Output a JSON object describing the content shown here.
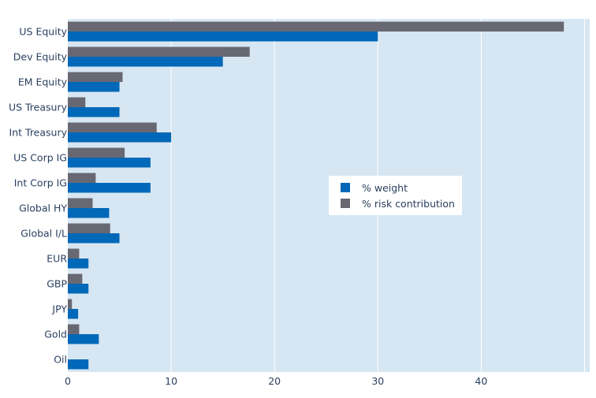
{
  "chart_data": {
    "type": "bar",
    "orientation": "horizontal",
    "categories": [
      "US Equity",
      "Dev Equity",
      "EM Equity",
      "US Treasury",
      "Int Treasury",
      "US Corp IG",
      "Int Corp IG",
      "Global HY",
      "Global I/L",
      "EUR",
      "GBP",
      "JPY",
      "Gold",
      "Oil"
    ],
    "series": [
      {
        "name": "% weight",
        "color": "#0068b8",
        "values": [
          30,
          15,
          5,
          5,
          10,
          8,
          8,
          4,
          5,
          2,
          2,
          1,
          3,
          2
        ]
      },
      {
        "name": "% risk contribution",
        "color": "#686872",
        "values": [
          48.0,
          17.6,
          5.3,
          1.7,
          8.6,
          5.5,
          2.7,
          2.4,
          4.1,
          1.1,
          1.4,
          0.4,
          1.1,
          0.0
        ]
      }
    ],
    "xlim": [
      0,
      50.5
    ],
    "xticks": [
      0,
      10,
      20,
      30,
      40
    ],
    "title": "",
    "xlabel": "",
    "ylabel": "",
    "grid": true,
    "legend_position": "center-right",
    "plot_background": "#d6e6f2",
    "grid_color": "#ffffff"
  }
}
